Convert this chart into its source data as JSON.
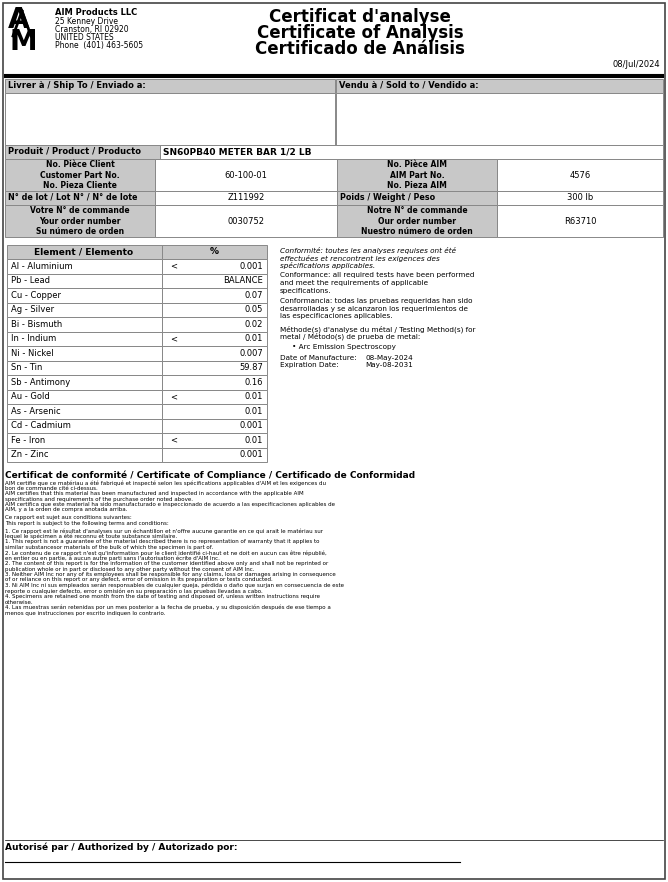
{
  "company_name": "AIM Products LLC",
  "company_address_lines": [
    "25 Kenney Drive",
    "Cranston, RI 02920",
    "UNITED STATES",
    "Phone  (401) 463-5605"
  ],
  "cert_title_fr": "Certificat d'analyse",
  "cert_title_en": "Certificate of Analysis",
  "cert_title_es": "Certificado de Análisis",
  "date": "08/Jul/2024",
  "ship_to_label": "Livrer à / Ship To / Enviado a:",
  "sold_to_label": "Vendu à / Sold to / Vendido a:",
  "product_label": "Produit / Product / Producto",
  "product_value": "SN60PB40 METER BAR 1/2 LB",
  "customer_part_label": "No. Pièce Client\nCustomer Part No.\nNo. Pieza Cliente",
  "customer_part_value": "60-100-01",
  "aim_part_label": "No. Pièce AIM\nAIM Part No.\nNo. Pieza AIM",
  "aim_part_value": "4576",
  "lot_label": "N° de lot / Lot N° / N° de lote",
  "lot_value": "Z111992",
  "weight_label": "Poids / Weight / Peso",
  "weight_value": "300 lb",
  "order_label_customer": "Votre N° de commande\nYour order number\nSu número de orden",
  "order_value_customer": "0030752",
  "order_label_aim": "Notre N° de commande\nOur order number\nNuestro número de orden",
  "order_value_aim": "R63710",
  "elements": [
    [
      "Al - Aluminium",
      "<",
      "0.001"
    ],
    [
      "Pb - Lead",
      "",
      "BALANCE"
    ],
    [
      "Cu - Copper",
      "",
      "0.07"
    ],
    [
      "Ag - Silver",
      "",
      "0.05"
    ],
    [
      "Bi - Bismuth",
      "",
      "0.02"
    ],
    [
      "In - Indium",
      "<",
      "0.01"
    ],
    [
      "Ni - Nickel",
      "",
      "0.007"
    ],
    [
      "Sn - Tin",
      "",
      "59.87"
    ],
    [
      "Sb - Antimony",
      "",
      "0.16"
    ],
    [
      "Au - Gold",
      "<",
      "0.01"
    ],
    [
      "As - Arsenic",
      "",
      "0.01"
    ],
    [
      "Cd - Cadmium",
      "",
      "0.001"
    ],
    [
      "Fe - Iron",
      "<",
      "0.01"
    ],
    [
      "Zn - Zinc",
      "",
      "0.001"
    ]
  ],
  "element_header": "Element / Elemento",
  "percent_header": "%",
  "conformity_text_fr": "Conformité: toutes les analyses requises ont été effectuées et rencontrent les exigences des spécifications applicables.",
  "conformity_text_en": "Conformance: all required tests have been performed and meet the requirements of applicable specifications.",
  "conformity_text_es": "Conformancia: todas las pruebas requeridas han sido desarrolladas y se alcanzaron los requerimientos de las especificaciones aplicables.",
  "method_label": "Méthode(s) d'analyse du métal / Testing Method(s) for metal / Método(s) de prueba de metal:",
  "method_value": "• Arc Emission Spectroscopy",
  "mfg_date_label": "Date of Manufacture:",
  "mfg_date_value": "08-May-2024",
  "exp_date_label": "Expiration Date:",
  "exp_date_value": "May-08-2031",
  "compliance_title": "Certificat de conformité / Certificate of Compliance / Certificado de Conformidad",
  "compliance_lines": [
    "AIM certifie que ce matériau a été fabriqué et inspecté selon les spécifications applicables d'AIM et les exigences du bon de commande cité ci-dessus.",
    "AIM certifies that this material has been manufactured and inspected in accordance with the applicable AIM specifications and requirements of the purchase order noted above.",
    "AIM certifica que este material ha sido manufacturado e inspeccionado de acuerdo a las especificaciones aplicables de AIM, y a la orden de compra anotada arriba.",
    "Ce rapport est sujet aux conditions suivantes:",
    "This report is subject to the following terms and conditions:",
    "1. Ce rapport est le résultat d'analyses sur un échantillon et n'offre aucune garantie en ce qui arait le matériau sur lequel le spécimen a été reconnu et toute substance similaire.",
    "1. This report is not a guarantee of the material described there is no representation of warranty that it applies to similar substancesor materials of the bulk of which the specimen is part of.",
    "2. Le contenu de ce rapport n'est qu'information pour le client identifié ci-haut et ne doit en aucun cas être républié, en entier ou en partie, à aucun autre parti sans l'autorisation écrite d'AIM Inc.",
    "2. The content of this report is for the information of the customer identified above only and shall not be reprinted or publication whole or in part or disclosed to any other party without the consent of AIM Inc.",
    "3. Neither AIM Inc nor any of its employees shall be responsible for any claims, loss or damages arising in consequence of or reliance on this report or any defect, error of omission in its preparation or tests conducted.",
    "3. Ni AIM Inc ni sus empleados serán responsables de cualquier queja, pérdida o daño que surjan en consecuencia de este reporte o cualquier defecto, error o omisión en su preparación o las pruebas llevadas a cabo.",
    "4. Specimens are retained one month from the date of testing and disposed of, unless written instructions require otherwise.",
    "4. Las muestras serán retenidas por un mes posterior a la fecha de prueba, y su disposición después de ese tiempo a menos que instrucciones por escrito indiquen lo contrario."
  ],
  "authorized_label": "Autorisé par / Authorized by / Autorizado por:",
  "header_bg": "#c8c8c8",
  "white": "#ffffff",
  "border_color": "#888888",
  "text_color": "#000000"
}
